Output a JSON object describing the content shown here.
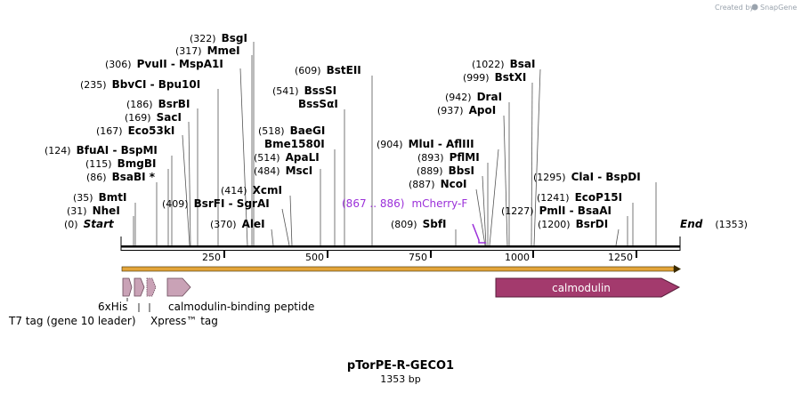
{
  "credit": {
    "prefix": "Created by",
    "brand": "SnapGene"
  },
  "map": {
    "title": "pTorPE-R-GECO1",
    "length_label": "1353 bp",
    "total_bp": 1353,
    "start_label": "Start",
    "start_pos": "(0)",
    "end_label": "End",
    "end_pos": "(1353)",
    "ticks": [
      {
        "bp": 250,
        "label": "250"
      },
      {
        "bp": 500,
        "label": "500"
      },
      {
        "bp": 750,
        "label": "750"
      },
      {
        "bp": 1000,
        "label": "1000"
      },
      {
        "bp": 1250,
        "label": "1250"
      }
    ]
  },
  "enzymes": [
    {
      "pos": "(322)",
      "name": "BsgI",
      "bp": 322
    },
    {
      "pos": "(317)",
      "name": "MmeI",
      "bp": 317
    },
    {
      "pos": "(306)",
      "name": "PvuII",
      "extra": " - MspA1I",
      "bp": 306
    },
    {
      "pos": "(235)",
      "name": "BbvCI",
      "extra": " - Bpu10I",
      "bp": 235
    },
    {
      "pos": "(186)",
      "name": "BsrBI",
      "bp": 186
    },
    {
      "pos": "(169)",
      "name": "SacI",
      "bp": 169
    },
    {
      "pos": "(167)",
      "name": "Eco53kI",
      "bp": 167
    },
    {
      "pos": "(124)",
      "name": "BfuAI",
      "extra": " - BspMI",
      "bp": 124
    },
    {
      "pos": "(115)",
      "name": "BmgBI",
      "bp": 115
    },
    {
      "pos": "(86)",
      "name": "BsaBI *",
      "bp": 86
    },
    {
      "pos": "(35)",
      "name": "BmtI",
      "bp": 35
    },
    {
      "pos": "(31)",
      "name": "NheI",
      "bp": 31
    },
    {
      "pos": "(409)",
      "name": "BsrFI",
      "extra": " - SgrAI",
      "bp": 409
    },
    {
      "pos": "(414)",
      "name": "XcmI",
      "bp": 414
    },
    {
      "pos": "(370)",
      "name": "AleI",
      "bp": 370
    },
    {
      "pos": "(609)",
      "name": "BstEII",
      "bp": 609
    },
    {
      "pos": "(541)",
      "name": "BssSI",
      "bp": 541
    },
    {
      "pos": "",
      "name": "BssSαI",
      "bp": 541
    },
    {
      "pos": "(518)",
      "name": "BaeGI",
      "bp": 518
    },
    {
      "pos": "",
      "name": "Bme1580I",
      "bp": 518
    },
    {
      "pos": "(514)",
      "name": "ApaLI",
      "bp": 514
    },
    {
      "pos": "(484)",
      "name": "MscI",
      "bp": 484
    },
    {
      "pos": "(904)",
      "name": "MluI",
      "extra": " - AflIII",
      "bp": 904
    },
    {
      "pos": "(893)",
      "name": "PflMI",
      "bp": 893
    },
    {
      "pos": "(889)",
      "name": "BbsI",
      "bp": 889
    },
    {
      "pos": "(887)",
      "name": "NcoI",
      "bp": 887
    },
    {
      "pos": "(809)",
      "name": "SbfI",
      "bp": 809
    },
    {
      "pos": "(1022)",
      "name": "BsaI",
      "bp": 1022
    },
    {
      "pos": "(999)",
      "name": "BstXI",
      "bp": 999
    },
    {
      "pos": "(942)",
      "name": "DraI",
      "bp": 942
    },
    {
      "pos": "(937)",
      "name": "ApoI",
      "bp": 937
    },
    {
      "pos": "(1295)",
      "name": "ClaI",
      "extra": " - BspDI",
      "bp": 1295
    },
    {
      "pos": "(1241)",
      "name": "EcoP15I",
      "bp": 1241
    },
    {
      "pos": "(1227)",
      "name": "PmlI",
      "extra": " - BsaAI",
      "bp": 1227
    },
    {
      "pos": "(1200)",
      "name": "BsrDI",
      "bp": 1200
    }
  ],
  "primer": {
    "range": "(867 .. 886)",
    "name": "mCherry-F",
    "color": "#9b30d9"
  },
  "features": [
    {
      "name": "calmodulin",
      "color": "#a33a6d"
    },
    {
      "name": "6xHis",
      "color": "#c9a2b6"
    },
    {
      "name": "T7 tag (gene 10 leader)",
      "color": "#c9a2b6"
    },
    {
      "name": "Xpress™ tag",
      "color": "#c9a2b6"
    },
    {
      "name": "calmodulin-binding peptide",
      "color": "#c9a2b6"
    }
  ],
  "colors": {
    "orf": "#e3a53a",
    "backbone": "#000000"
  }
}
